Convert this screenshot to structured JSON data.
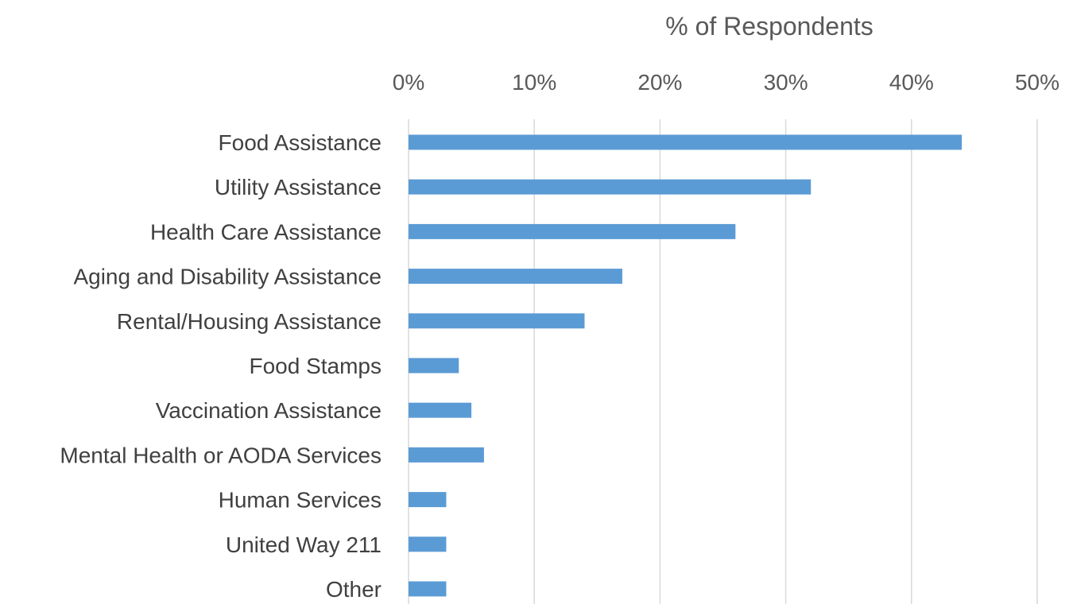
{
  "chart_data": {
    "type": "bar",
    "orientation": "horizontal",
    "title": "",
    "xlabel": "% of Respondents",
    "ylabel": "",
    "xlim": [
      0,
      50
    ],
    "x_axis_position": "top",
    "grid": true,
    "legend": "none",
    "tick_values": [
      0,
      10,
      20,
      30,
      40,
      50
    ],
    "tick_labels": [
      "0%",
      "10%",
      "20%",
      "30%",
      "40%",
      "50%"
    ],
    "categories": [
      "Food Assistance",
      "Utility Assistance",
      "Health Care Assistance",
      "Aging and Disability Assistance",
      "Rental/Housing Assistance",
      "Food Stamps",
      "Vaccination Assistance",
      "Mental Health or AODA Services",
      "Human Services",
      "United Way 211",
      "Other"
    ],
    "values": [
      44,
      32,
      26,
      17,
      14,
      4,
      5,
      6,
      3,
      3,
      3
    ],
    "bar_color": "#5b9bd5",
    "grid_color": "#d9d9d9",
    "text_color": "#595959"
  }
}
